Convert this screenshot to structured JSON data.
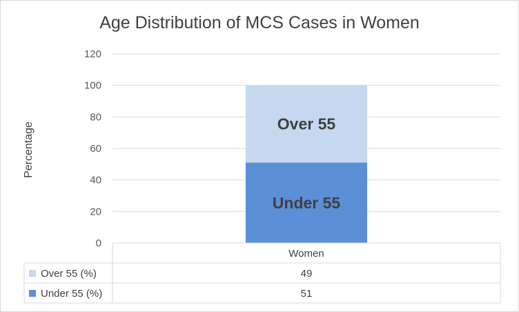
{
  "chart_data": {
    "type": "bar",
    "stacked": true,
    "title": "Age Distribution of MCS Cases in Women",
    "xlabel": "",
    "ylabel": "Percentage",
    "categories": [
      "Women"
    ],
    "ylim": [
      0,
      120
    ],
    "yticks": [
      0,
      20,
      40,
      60,
      80,
      100,
      120
    ],
    "grid": true,
    "series": [
      {
        "name": "Under 55 (%)",
        "values": [
          51
        ],
        "color": "#5b8fd6",
        "bar_label": "Under 55"
      },
      {
        "name": "Over 55 (%)",
        "values": [
          49
        ],
        "color": "#c5d8f0",
        "bar_label": "Over 55"
      }
    ],
    "data_table": {
      "rows_order": [
        "Over 55 (%)",
        "Under 55 (%)"
      ]
    }
  }
}
